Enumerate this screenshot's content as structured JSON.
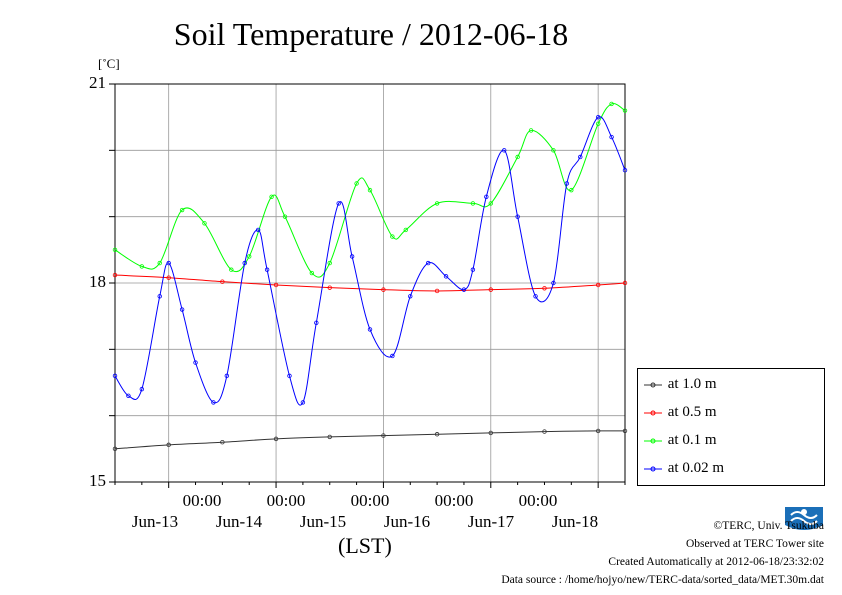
{
  "chart_data": {
    "type": "line",
    "title": "Soil Temperature / 2012-06-18",
    "unit": "[˚C]",
    "xlabel": "(LST)",
    "ylim": [
      15,
      21
    ],
    "yticks": [
      "21",
      "18",
      "15"
    ],
    "xlim": [
      -12,
      102
    ],
    "time_tick_label": "00:00",
    "day_labels": [
      "Jun-13",
      "Jun-14",
      "Jun-15",
      "Jun-16",
      "Jun-17",
      "Jun-18"
    ],
    "grid": true,
    "legend_position": "right",
    "x_units": "hours from 2012-06-13 00:00",
    "series": [
      {
        "name": "at 1.0 m",
        "color": "#333333",
        "x": [
          -12,
          0,
          12,
          24,
          36,
          48,
          60,
          72,
          84,
          96,
          102
        ],
        "y": [
          15.5,
          15.56,
          15.6,
          15.65,
          15.68,
          15.7,
          15.72,
          15.74,
          15.76,
          15.77,
          15.77
        ]
      },
      {
        "name": "at 0.5 m",
        "color": "#ff0000",
        "x": [
          -12,
          0,
          12,
          24,
          36,
          48,
          60,
          72,
          84,
          96,
          102
        ],
        "y": [
          18.12,
          18.08,
          18.02,
          17.97,
          17.93,
          17.9,
          17.88,
          17.9,
          17.92,
          17.97,
          18.0
        ]
      },
      {
        "name": "at 0.1 m",
        "color": "#00ff00",
        "x": [
          -12,
          -6,
          -2,
          3,
          8,
          14,
          18,
          23,
          26,
          32,
          36,
          42,
          45,
          50,
          53,
          60,
          68,
          72,
          78,
          81,
          86,
          90,
          96,
          99,
          102
        ],
        "y": [
          18.5,
          18.25,
          18.3,
          19.1,
          18.9,
          18.2,
          18.4,
          19.3,
          19.0,
          18.15,
          18.3,
          19.5,
          19.4,
          18.7,
          18.8,
          19.2,
          19.2,
          19.2,
          19.9,
          20.3,
          20.0,
          19.4,
          20.4,
          20.7,
          20.6
        ]
      },
      {
        "name": "at 0.02 m",
        "color": "#0000ff",
        "x": [
          -12,
          -9,
          -6,
          -2,
          0,
          3,
          6,
          10,
          13,
          17,
          20,
          22,
          27,
          30,
          33,
          38,
          41,
          45,
          50,
          54,
          58,
          62,
          66,
          68,
          71,
          75,
          78,
          82,
          86,
          89,
          92,
          96,
          99,
          102
        ],
        "y": [
          16.6,
          16.3,
          16.4,
          17.8,
          18.3,
          17.6,
          16.8,
          16.2,
          16.6,
          18.3,
          18.8,
          18.2,
          16.6,
          16.2,
          17.4,
          19.2,
          18.4,
          17.3,
          16.9,
          17.8,
          18.3,
          18.1,
          17.9,
          18.2,
          19.3,
          20.0,
          19.0,
          17.8,
          18.0,
          19.5,
          19.9,
          20.5,
          20.2,
          19.7
        ]
      }
    ]
  },
  "footer": {
    "copyright": "©TERC, Univ. Tsukuba",
    "observed": "Observed at TERC Tower site",
    "created": "Created Automatically at 2012-06-18/23:32:02",
    "source": "Data source : /home/hojyo/new/TERC-data/sorted_data/MET.30m.dat"
  },
  "logo": {
    "text": "TERC",
    "color": "#1b6fb8"
  }
}
